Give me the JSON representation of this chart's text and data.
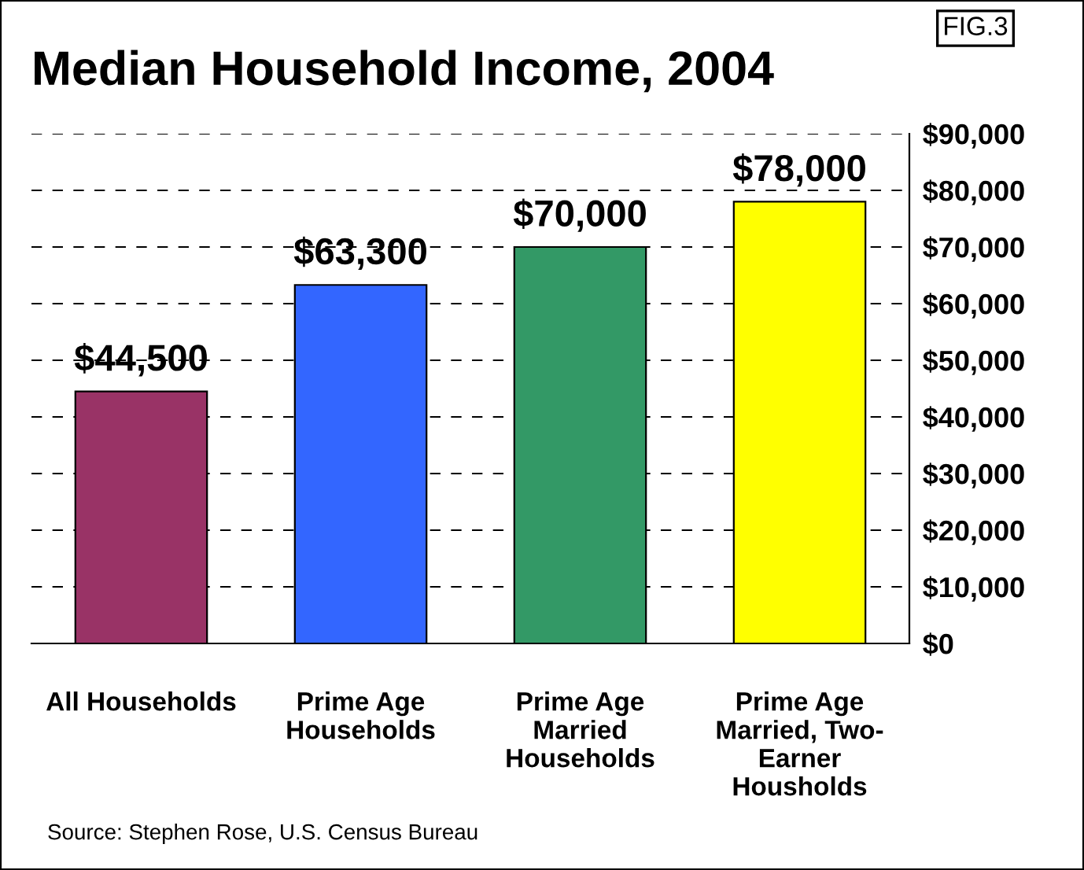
{
  "chart_data": {
    "type": "bar",
    "title": "Median Household Income, 2004",
    "categories": [
      "All Households",
      "Prime Age\nHouseholds",
      "Prime Age\nMarried\nHouseholds",
      "Prime Age\nMarried, Two-\nEarner\nHousholds"
    ],
    "values": [
      44500,
      63300,
      70000,
      78000
    ],
    "colors": [
      "#993366",
      "#3366ff",
      "#339966",
      "#ffff00"
    ],
    "value_labels": [
      "$44,500",
      "$63,300",
      "$70,000",
      "$78,000"
    ],
    "ylim": [
      0,
      90000
    ],
    "yticks": [
      {
        "value": 0,
        "label": "$0"
      },
      {
        "value": 10000,
        "label": "$10,000"
      },
      {
        "value": 20000,
        "label": "$20,000"
      },
      {
        "value": 30000,
        "label": "$30,000"
      },
      {
        "value": 40000,
        "label": "$40,000"
      },
      {
        "value": 50000,
        "label": "$50,000"
      },
      {
        "value": 60000,
        "label": "$60,000"
      },
      {
        "value": 70000,
        "label": "$70,000"
      },
      {
        "value": 80000,
        "label": "$80,000"
      },
      {
        "value": 90000,
        "label": "$90,000"
      }
    ],
    "grid": "y",
    "annotations": [
      "FIG.3",
      "Source: Stephen Rose, U.S. Census Bureau"
    ]
  }
}
